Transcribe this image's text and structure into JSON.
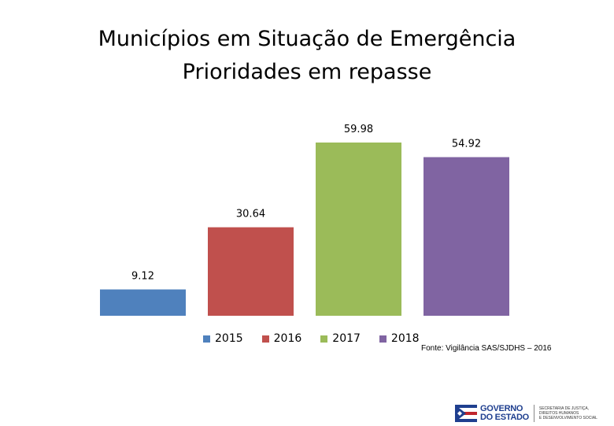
{
  "title_line1": "Municípios em Situação de Emergência",
  "title_line2": "Prioridades em repasse",
  "chart_data": {
    "type": "bar",
    "title": "Municípios em Situação de Emergência Prioridades em repasse",
    "categories": [
      "2015",
      "2016",
      "2017",
      "2018"
    ],
    "values": [
      9.12,
      30.64,
      59.98,
      54.92
    ],
    "data_labels": [
      "9.12",
      "30.64",
      "59.98",
      "54.92"
    ],
    "colors": [
      "#4f81bd",
      "#c0504d",
      "#9bbb59",
      "#8064a2"
    ],
    "legend_position": "bottom",
    "grid": false,
    "ylim": [
      0,
      60
    ]
  },
  "source_note": "Fonte: Vigilância SAS/SJDHS – 2016",
  "logo": {
    "name_line1": "GOVERNO",
    "name_line2": "DO ESTADO",
    "dept_line1": "SECRETARIA DE JUSTIÇA, DIREITOS HUMANOS",
    "dept_line2": "E DESENVOLVIMENTO SOCIAL"
  }
}
